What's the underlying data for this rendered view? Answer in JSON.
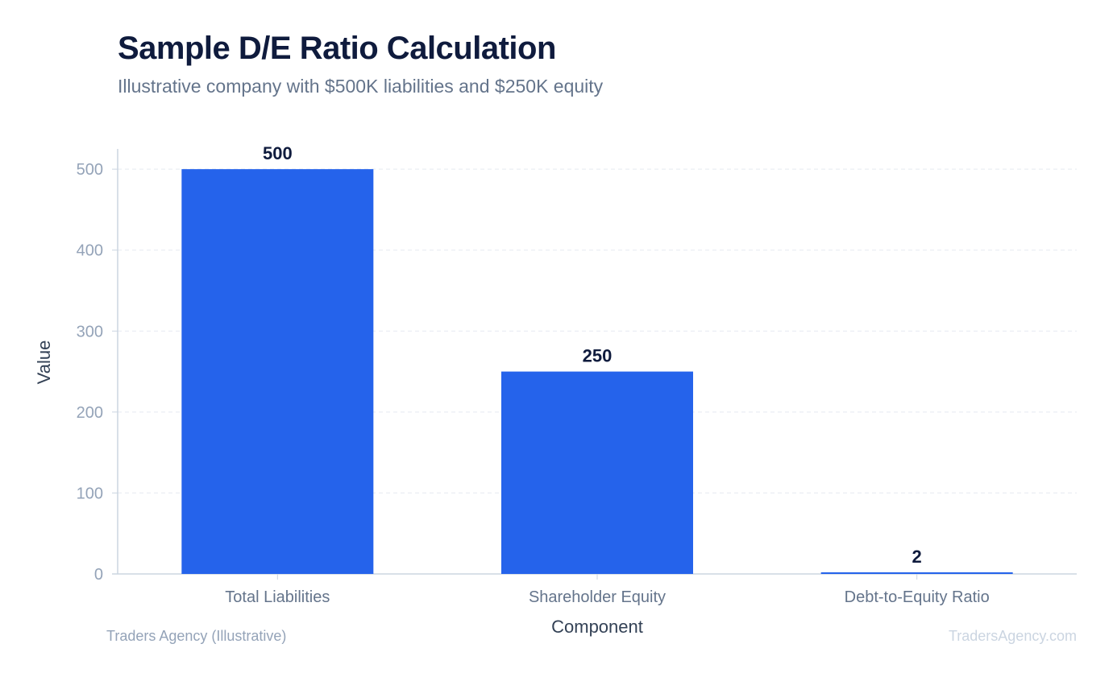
{
  "chart_data": {
    "type": "bar",
    "title": "Sample D/E Ratio Calculation",
    "subtitle": "Illustrative company with $500K liabilities and $250K equity",
    "xlabel": "Component",
    "ylabel": "Value",
    "categories": [
      "Total Liabilities",
      "Shareholder Equity",
      "Debt-to-Equity Ratio"
    ],
    "values": [
      500,
      250,
      2
    ],
    "data_labels": [
      "500",
      "250",
      "2"
    ],
    "ylim": [
      0,
      525
    ],
    "yticks": [
      0,
      100,
      200,
      300,
      400,
      500
    ],
    "grid": true,
    "bar_color": "#2563eb"
  },
  "footer": {
    "source": "Traders Agency (Illustrative)",
    "watermark": "TradersAgency.com"
  }
}
